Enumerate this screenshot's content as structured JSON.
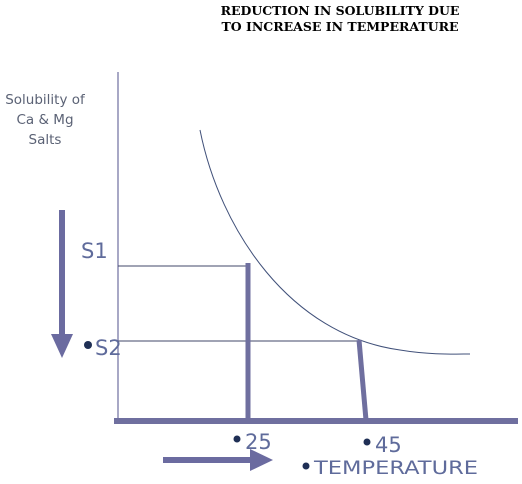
{
  "title": {
    "line1": "REDUCTION IN SOLUBILITY DUE",
    "line2": "TO INCREASE IN TEMPERATURE"
  },
  "y_axis_label": {
    "line1": "Solubility of",
    "line2": "Ca & Mg",
    "line3": "Salts"
  },
  "labels": {
    "s1": "S1",
    "s2": "S2",
    "t25": "25",
    "t45": "45",
    "temperature": "TEMPERATURE"
  },
  "colors": {
    "axis": "#6f6f9f",
    "curve": "#41517a",
    "guide": "#41476a",
    "bullet": "#1f2f55",
    "label": "#5f6b9b",
    "arrow": "#6b6ba0"
  }
}
